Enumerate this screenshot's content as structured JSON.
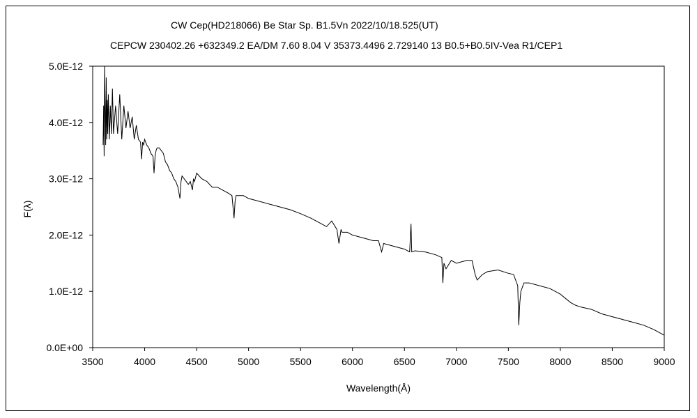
{
  "chart_data": {
    "type": "line",
    "title": "CW Cep(HD218066)    Be Star    Sp. B1.5Vn    2022/10/18.525(UT)",
    "subtitle": "CEPCW 230402.26 +632349.2 EA/DM 7.60 8.04 V 35373.4496 2.729140 13 B0.5+B0.5IV-Vea R1/CEP1",
    "xlabel": "Wavelength(Å)",
    "ylabel": "F(λ)",
    "xlim": [
      3500,
      9000
    ],
    "ylim": [
      0,
      5e-12
    ],
    "x_ticks": [
      "3500",
      "4000",
      "4500",
      "5000",
      "5500",
      "6000",
      "6500",
      "7000",
      "7500",
      "8000",
      "8500",
      "9000"
    ],
    "y_ticks": [
      "0.0E+00",
      "1.0E-12",
      "2.0E-12",
      "3.0E-12",
      "4.0E-12",
      "5.0E-12"
    ],
    "grid": false,
    "series": [
      {
        "color": "#000000",
        "x": [
          3600,
          3605,
          3610,
          3615,
          3620,
          3625,
          3630,
          3635,
          3640,
          3645,
          3650,
          3660,
          3670,
          3680,
          3690,
          3700,
          3720,
          3740,
          3760,
          3780,
          3800,
          3820,
          3840,
          3860,
          3880,
          3900,
          3920,
          3940,
          3960,
          3970,
          3980,
          3990,
          4000,
          4020,
          4040,
          4060,
          4080,
          4090,
          4100,
          4110,
          4120,
          4140,
          4160,
          4180,
          4200,
          4220,
          4240,
          4260,
          4280,
          4300,
          4320,
          4340,
          4350,
          4360,
          4380,
          4400,
          4420,
          4440,
          4460,
          4470,
          4480,
          4500,
          4550,
          4600,
          4650,
          4700,
          4750,
          4800,
          4840,
          4860,
          4870,
          4880,
          4900,
          4950,
          5000,
          5100,
          5200,
          5300,
          5400,
          5500,
          5600,
          5700,
          5750,
          5800,
          5850,
          5870,
          5890,
          5900,
          5950,
          6000,
          6100,
          6200,
          6250,
          6280,
          6300,
          6400,
          6500,
          6550,
          6563,
          6570,
          6600,
          6700,
          6800,
          6860,
          6870,
          6880,
          6900,
          6950,
          7000,
          7100,
          7150,
          7180,
          7200,
          7250,
          7300,
          7400,
          7500,
          7550,
          7590,
          7600,
          7610,
          7620,
          7650,
          7700,
          7800,
          7900,
          8000,
          8100,
          8150,
          8200,
          8300,
          8400,
          8500,
          8600,
          8700,
          8800,
          8900,
          9000
        ],
        "y": [
          3.6e-12,
          4.3e-12,
          3.4e-12,
          5e-12,
          4.2e-12,
          3.6e-12,
          4.8e-12,
          3.7e-12,
          4.4e-12,
          3.8e-12,
          4.5e-12,
          3.7e-12,
          4.3e-12,
          3.8e-12,
          4.6e-12,
          3.8e-12,
          4.3e-12,
          3.8e-12,
          4.5e-12,
          3.7e-12,
          4.3e-12,
          3.9e-12,
          4.2e-12,
          3.9e-12,
          4.1e-12,
          3.7e-12,
          3.95e-12,
          3.7e-12,
          3.65e-12,
          3.35e-12,
          3.65e-12,
          3.6e-12,
          3.7e-12,
          3.6e-12,
          3.55e-12,
          3.45e-12,
          3.4e-12,
          3.1e-12,
          3.4e-12,
          3.5e-12,
          3.55e-12,
          3.55e-12,
          3.5e-12,
          3.45e-12,
          3.3e-12,
          3.25e-12,
          3.15e-12,
          3.1e-12,
          3e-12,
          2.95e-12,
          2.85e-12,
          2.65e-12,
          2.95e-12,
          3.05e-12,
          3e-12,
          2.95e-12,
          2.9e-12,
          2.95e-12,
          2.8e-12,
          3e-12,
          2.95e-12,
          3.1e-12,
          3e-12,
          2.95e-12,
          2.85e-12,
          2.85e-12,
          2.8e-12,
          2.75e-12,
          2.7e-12,
          2.3e-12,
          2.6e-12,
          2.7e-12,
          2.7e-12,
          2.7e-12,
          2.65e-12,
          2.6e-12,
          2.55e-12,
          2.5e-12,
          2.45e-12,
          2.38e-12,
          2.3e-12,
          2.2e-12,
          2.15e-12,
          2.25e-12,
          2.1e-12,
          1.85e-12,
          2.1e-12,
          2.05e-12,
          2.05e-12,
          2e-12,
          1.95e-12,
          1.9e-12,
          1.9e-12,
          1.7e-12,
          1.85e-12,
          1.8e-12,
          1.75e-12,
          1.7e-12,
          2.2e-12,
          1.7e-12,
          1.72e-12,
          1.7e-12,
          1.65e-12,
          1.6e-12,
          1.15e-12,
          1.5e-12,
          1.4e-12,
          1.55e-12,
          1.5e-12,
          1.55e-12,
          1.55e-12,
          1.3e-12,
          1.2e-12,
          1.3e-12,
          1.35e-12,
          1.38e-12,
          1.32e-12,
          1.3e-12,
          1.1e-12,
          4e-13,
          8e-13,
          1e-12,
          1.15e-12,
          1.15e-12,
          1.1e-12,
          1.05e-12,
          9.5e-13,
          8e-13,
          7.5e-13,
          7.2e-13,
          6.8e-13,
          6e-13,
          5.5e-13,
          5e-13,
          4.5e-13,
          4e-13,
          3.2e-13,
          2.2e-13
        ]
      }
    ]
  }
}
